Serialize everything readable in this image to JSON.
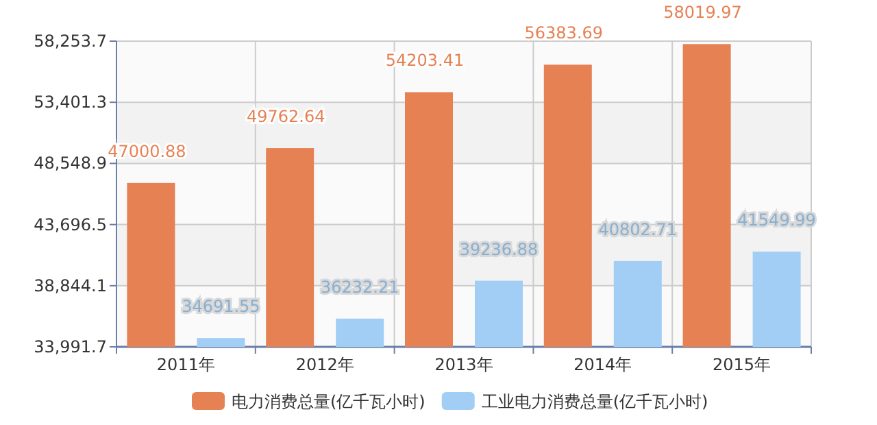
{
  "chart_data": {
    "type": "bar",
    "categories": [
      "2011年",
      "2012年",
      "2013年",
      "2014年",
      "2015年"
    ],
    "series": [
      {
        "name": "电力消费总量(亿千瓦小时)",
        "color": "#e68154",
        "values": [
          47000.88,
          49762.64,
          54203.41,
          56383.69,
          58019.97
        ]
      },
      {
        "name": "工业电力消费总量(亿千瓦小时)",
        "color": "#a2cef5",
        "values": [
          34691.55,
          36232.21,
          39236.88,
          40802.71,
          41549.99
        ]
      }
    ],
    "ylim": [
      33991.7,
      58253.7
    ],
    "yticks": [
      {
        "value": 33991.7,
        "label": "33,991.7"
      },
      {
        "value": 38844.1,
        "label": "38,844.1"
      },
      {
        "value": 43696.5,
        "label": "43,696.5"
      },
      {
        "value": 48548.9,
        "label": "48,548.9"
      },
      {
        "value": 53401.3,
        "label": "53,401.3"
      },
      {
        "value": 58253.7,
        "label": "58,253.7"
      }
    ],
    "grid": true,
    "legend": "bottom",
    "data_labels": true
  }
}
